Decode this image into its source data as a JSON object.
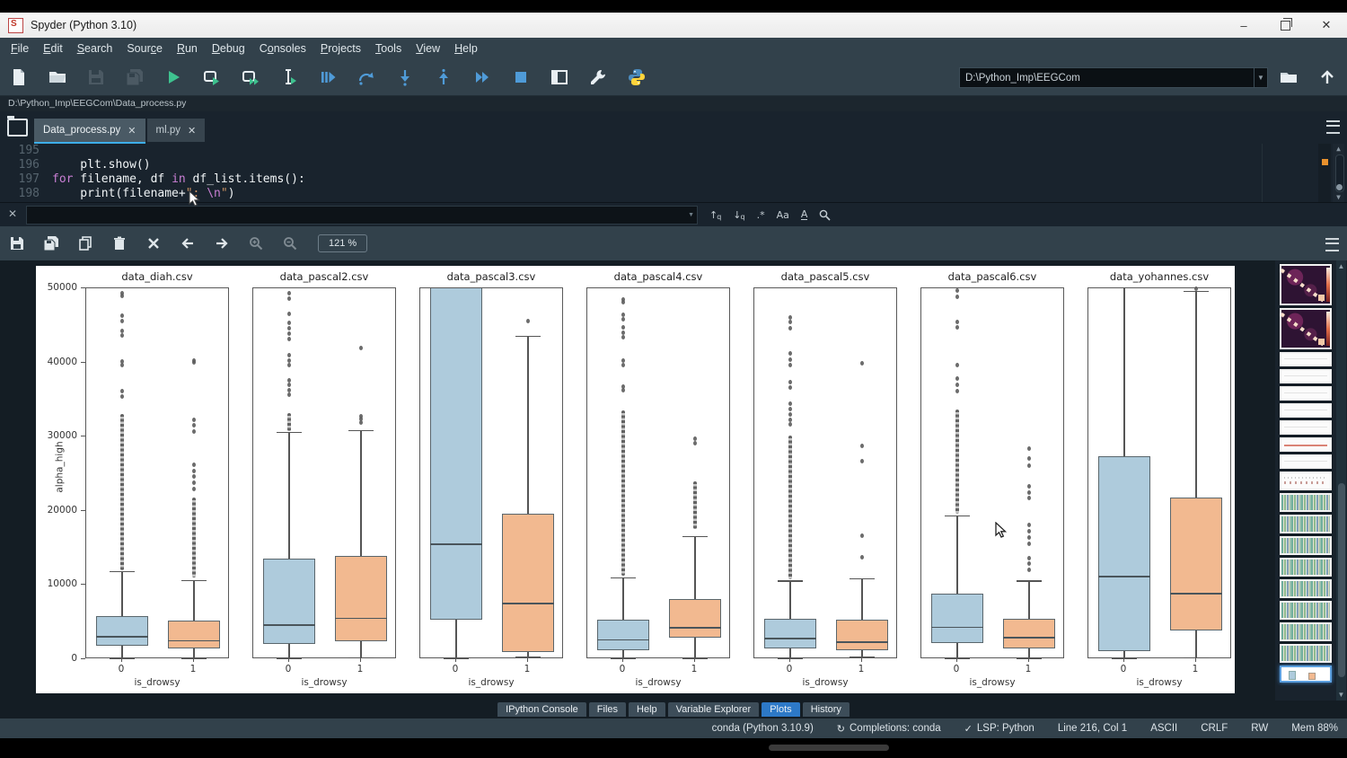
{
  "window": {
    "title": "Spyder (Python 3.10)",
    "controls": [
      "minimize",
      "restore",
      "close"
    ]
  },
  "menu_bar": {
    "items": [
      {
        "label": "File",
        "u": 0
      },
      {
        "label": "Edit",
        "u": 0
      },
      {
        "label": "Search",
        "u": 0
      },
      {
        "label": "Source",
        "u": 4
      },
      {
        "label": "Run",
        "u": 0
      },
      {
        "label": "Debug",
        "u": 0
      },
      {
        "label": "Consoles",
        "u": 1
      },
      {
        "label": "Projects",
        "u": 0
      },
      {
        "label": "Tools",
        "u": 0
      },
      {
        "label": "View",
        "u": 0
      },
      {
        "label": "Help",
        "u": 0
      }
    ]
  },
  "main_toolbar": {
    "icons": [
      {
        "name": "new-file"
      },
      {
        "name": "open-file"
      },
      {
        "name": "save-file",
        "disabled": true
      },
      {
        "name": "save-all",
        "disabled": true
      },
      {
        "name": "run-file"
      },
      {
        "name": "run-cell"
      },
      {
        "name": "run-cell-advance"
      },
      {
        "name": "run-selection"
      },
      {
        "name": "debug-file"
      },
      {
        "name": "debug-step-over"
      },
      {
        "name": "debug-step-into"
      },
      {
        "name": "debug-step-return"
      },
      {
        "name": "debug-continue"
      },
      {
        "name": "debug-stop"
      },
      {
        "name": "maximize-pane"
      },
      {
        "name": "preferences"
      },
      {
        "name": "python-path-manager"
      }
    ],
    "working_directory": "D:\\Python_Imp\\EEGCom"
  },
  "breadcrumb": "D:\\Python_Imp\\EEGCom\\Data_process.py",
  "editor": {
    "tabs": [
      {
        "label": "Data_process.py",
        "active": true
      },
      {
        "label": "ml.py",
        "active": false
      }
    ],
    "lines": [
      {
        "number": "195",
        "tokens": []
      },
      {
        "number": "196",
        "tokens": [
          {
            "c": "plain",
            "t": "    plt.show()"
          }
        ]
      },
      {
        "number": "197",
        "tokens": [
          {
            "c": "kw",
            "t": "for"
          },
          {
            "c": "plain",
            "t": " filename, df "
          },
          {
            "c": "kw",
            "t": "in"
          },
          {
            "c": "plain",
            "t": " df_list.items():"
          }
        ]
      },
      {
        "number": "198",
        "tokens": [
          {
            "c": "plain",
            "t": "    print(filename+"
          },
          {
            "c": "str",
            "t": "\": "
          },
          {
            "c": "esc",
            "t": "\\n"
          },
          {
            "c": "str",
            "t": "\""
          },
          {
            "c": "plain",
            "t": ")"
          }
        ]
      }
    ]
  },
  "find_bar": {
    "value": "",
    "icons": [
      "find-previous",
      "find-next",
      "regex",
      "case-sensitive",
      "whole-words",
      "highlight-matches"
    ]
  },
  "plots_toolbar": {
    "icons": [
      {
        "name": "save-plot"
      },
      {
        "name": "save-all-plots"
      },
      {
        "name": "copy-plot"
      },
      {
        "name": "remove-plot"
      },
      {
        "name": "remove-all-plots"
      },
      {
        "name": "previous-plot"
      },
      {
        "name": "next-plot"
      },
      {
        "name": "zoom-in",
        "disabled": true
      },
      {
        "name": "zoom-out",
        "disabled": true
      }
    ],
    "zoom_level": "121 %"
  },
  "chart_data": {
    "type": "box",
    "ylabel": "alpha_high",
    "xlabel": "is_drowsy",
    "ylim": [
      0,
      50000
    ],
    "yticks": [
      0,
      10000,
      20000,
      30000,
      40000,
      50000
    ],
    "categories": [
      "0",
      "1"
    ],
    "colors": {
      "cat0_fill": "#aecbdc",
      "cat1_fill": "#f2b990"
    },
    "subplots": [
      {
        "title": "data_diah.csv",
        "boxes": [
          {
            "cat": "0",
            "whislo": 150,
            "q1": 1800,
            "med": 3100,
            "q3": 5800,
            "whishi": 11900,
            "dense": [
              12000,
              33000
            ],
            "fliers": [
              35400,
              36100,
              39600,
              40100,
              43600,
              44200,
              45600,
              46300,
              49000,
              49300
            ]
          },
          {
            "cat": "1",
            "whislo": 150,
            "q1": 1400,
            "med": 2600,
            "q3": 5200,
            "whishi": 10700,
            "dense": [
              11000,
              21800
            ],
            "fliers": [
              23000,
              23800,
              24600,
              25400,
              26200,
              30700,
              31500,
              32300,
              40000,
              40300
            ]
          }
        ]
      },
      {
        "title": "data_pascal2.csv",
        "boxes": [
          {
            "cat": "0",
            "whislo": 100,
            "q1": 2100,
            "med": 4700,
            "q3": 13500,
            "whishi": 30600,
            "dense": [
              30800,
              33200
            ],
            "fliers": [
              35600,
              36300,
              37000,
              37600,
              39700,
              40300,
              41000,
              43200,
              43900,
              44600,
              45300,
              46600,
              48600,
              49300
            ]
          },
          {
            "cat": "1",
            "whislo": 300,
            "q1": 2400,
            "med": 5600,
            "q3": 13900,
            "whishi": 30900,
            "dense": null,
            "fliers": [
              31900,
              32400,
              32800,
              42000
            ]
          }
        ]
      },
      {
        "title": "data_pascal3.csv",
        "boxes": [
          {
            "cat": "0",
            "whislo": 100,
            "q1": 5300,
            "med": 15600,
            "q3": 52000,
            "whishi": null,
            "dense": null,
            "fliers": []
          },
          {
            "cat": "1",
            "whislo": 400,
            "q1": 1000,
            "med": 7600,
            "q3": 19600,
            "whishi": 43600,
            "dense": null,
            "fliers": [
              45600
            ]
          }
        ]
      },
      {
        "title": "data_pascal4.csv",
        "boxes": [
          {
            "cat": "0",
            "whislo": 100,
            "q1": 1200,
            "med": 2700,
            "q3": 5300,
            "whishi": 11000,
            "dense": [
              11200,
              33500
            ],
            "fliers": [
              36200,
              36800,
              39600,
              40200,
              43400,
              44000,
              44700,
              45800,
              46400,
              48100,
              48500
            ]
          },
          {
            "cat": "1",
            "whislo": 150,
            "q1": 2900,
            "med": 4300,
            "q3": 8100,
            "whishi": 16600,
            "dense": [
              17500,
              24000
            ],
            "fliers": [
              29100,
              29700
            ]
          }
        ]
      },
      {
        "title": "data_pascal5.csv",
        "boxes": [
          {
            "cat": "0",
            "whislo": 150,
            "q1": 1500,
            "med": 2900,
            "q3": 5400,
            "whishi": 10600,
            "dense": [
              10800,
              30200
            ],
            "fliers": [
              31600,
              32300,
              33000,
              33700,
              34400,
              36600,
              37300,
              39700,
              40400,
              41200,
              44600,
              45400,
              46100
            ]
          },
          {
            "cat": "1",
            "whislo": 400,
            "q1": 1200,
            "med": 2400,
            "q3": 5300,
            "whishi": 10900,
            "dense": null,
            "fliers": [
              13700,
              16700,
              26700,
              28700,
              39900
            ]
          }
        ]
      },
      {
        "title": "data_pascal6.csv",
        "boxes": [
          {
            "cat": "0",
            "whislo": 150,
            "q1": 2200,
            "med": 4400,
            "q3": 8800,
            "whishi": 19400,
            "dense": [
              19600,
              33600
            ],
            "fliers": [
              36100,
              37000,
              37800,
              39600,
              44700,
              45400,
              48900,
              49700
            ]
          },
          {
            "cat": "1",
            "whislo": 200,
            "q1": 1400,
            "med": 3000,
            "q3": 5400,
            "whishi": 10600,
            "dense": null,
            "fliers": [
              12100,
              12900,
              13600,
              15600,
              16400,
              17200,
              18100,
              21700,
              22500,
              23300,
              26100,
              27000,
              28400
            ]
          }
        ]
      },
      {
        "title": "data_yohannes.csv",
        "boxes": [
          {
            "cat": "0",
            "whislo": 100,
            "q1": 1100,
            "med": 11200,
            "q3": 27400,
            "whishi": 52000,
            "dense": null,
            "fliers": []
          },
          {
            "cat": "1",
            "whislo": 300,
            "q1": 3900,
            "med": 8900,
            "q3": 21800,
            "whishi": 49600,
            "dense": null,
            "fliers": [
              50100
            ]
          }
        ]
      }
    ]
  },
  "sidebar": {
    "thumbnails": [
      {
        "type": "heatmap"
      },
      {
        "type": "heatmap"
      },
      {
        "type": "blank"
      },
      {
        "type": "blank"
      },
      {
        "type": "blank"
      },
      {
        "type": "blank"
      },
      {
        "type": "blank"
      },
      {
        "type": "redline"
      },
      {
        "type": "blank"
      },
      {
        "type": "marks"
      },
      {
        "type": "stripes"
      },
      {
        "type": "stripes"
      },
      {
        "type": "stripes"
      },
      {
        "type": "stripes"
      },
      {
        "type": "stripes"
      },
      {
        "type": "stripes"
      },
      {
        "type": "stripes"
      },
      {
        "type": "stripes"
      },
      {
        "type": "boxplots",
        "selected": true
      }
    ]
  },
  "bottom_tabs": {
    "items": [
      "IPython Console",
      "Files",
      "Help",
      "Variable Explorer",
      "Plots",
      "History"
    ],
    "active": "Plots"
  },
  "status_bar": {
    "items": [
      {
        "text": "conda (Python 3.10.9)"
      },
      {
        "icon": "sync-icon",
        "text": "Completions: conda"
      },
      {
        "icon": "check-icon",
        "text": "LSP: Python"
      },
      {
        "text": "Line 216, Col 1"
      },
      {
        "text": "ASCII"
      },
      {
        "text": "CRLF"
      },
      {
        "text": "RW"
      },
      {
        "text": "Mem 88%"
      }
    ]
  }
}
